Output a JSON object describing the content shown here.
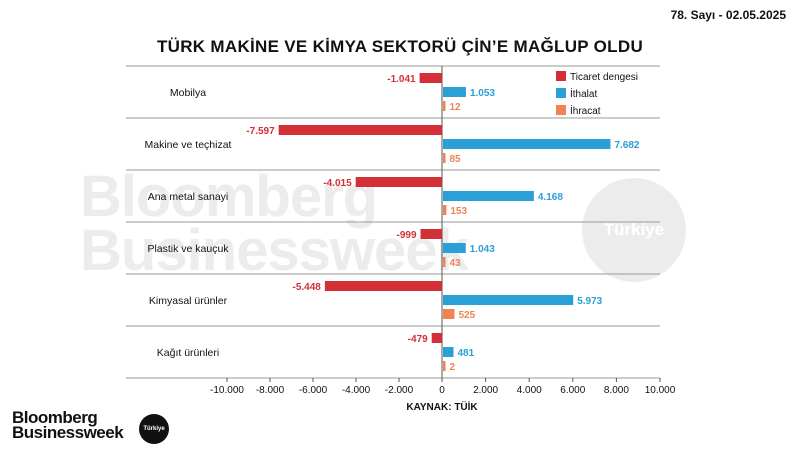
{
  "header": {
    "issue": "78. Sayı - 02.05.2025",
    "title": "TÜRK MAKİNE VE KİMYA SEKTORÜ ÇİN’E MAĞLUP OLDU"
  },
  "watermark": {
    "line1": "Bloomberg",
    "line2": "Businessweek",
    "badge": "Türkiye"
  },
  "logo": {
    "line1": "Bloomberg",
    "line2": "Businessweek",
    "badge": "Türkiye"
  },
  "chart_data": {
    "type": "bar",
    "orientation": "horizontal",
    "categories": [
      "Mobilya",
      "Makine ve teçhizat",
      "Ana metal sanayi",
      "Plastik ve kauçuk",
      "Kimyasal ürünler",
      "Kağıt ürünleri"
    ],
    "series": [
      {
        "name": "Ticaret dengesi",
        "color": "#d32f36",
        "values": [
          -1041,
          -7597,
          -4015,
          -999,
          -5448,
          -479
        ],
        "labels": [
          "-1.041",
          "-7.597",
          "-4.015",
          "-999",
          "-5.448",
          "-479"
        ]
      },
      {
        "name": "İthalat",
        "color": "#2a9fd8",
        "values": [
          1053,
          7682,
          4168,
          1043,
          5973,
          481
        ],
        "labels": [
          "1.053",
          "7.682",
          "4.168",
          "1.043",
          "5.973",
          "481"
        ]
      },
      {
        "name": "İhracat",
        "color": "#ef8354",
        "values": [
          12,
          85,
          153,
          43,
          525,
          2
        ],
        "labels": [
          "12",
          "85",
          "153",
          "43",
          "525",
          "2"
        ]
      }
    ],
    "xlim": [
      -10000,
      10000
    ],
    "xticks": [
      -10000,
      -8000,
      -6000,
      -4000,
      -2000,
      0,
      2000,
      4000,
      6000,
      8000,
      10000
    ],
    "xtick_labels": [
      "-10.000",
      "-8.000",
      "-6.000",
      "-4.000",
      "-2.000",
      "0",
      "2.000",
      "4.000",
      "6.000",
      "8.000",
      "10.000"
    ],
    "xlabel": "KAYNAK: TÜİK",
    "legend_position": "top-right"
  }
}
